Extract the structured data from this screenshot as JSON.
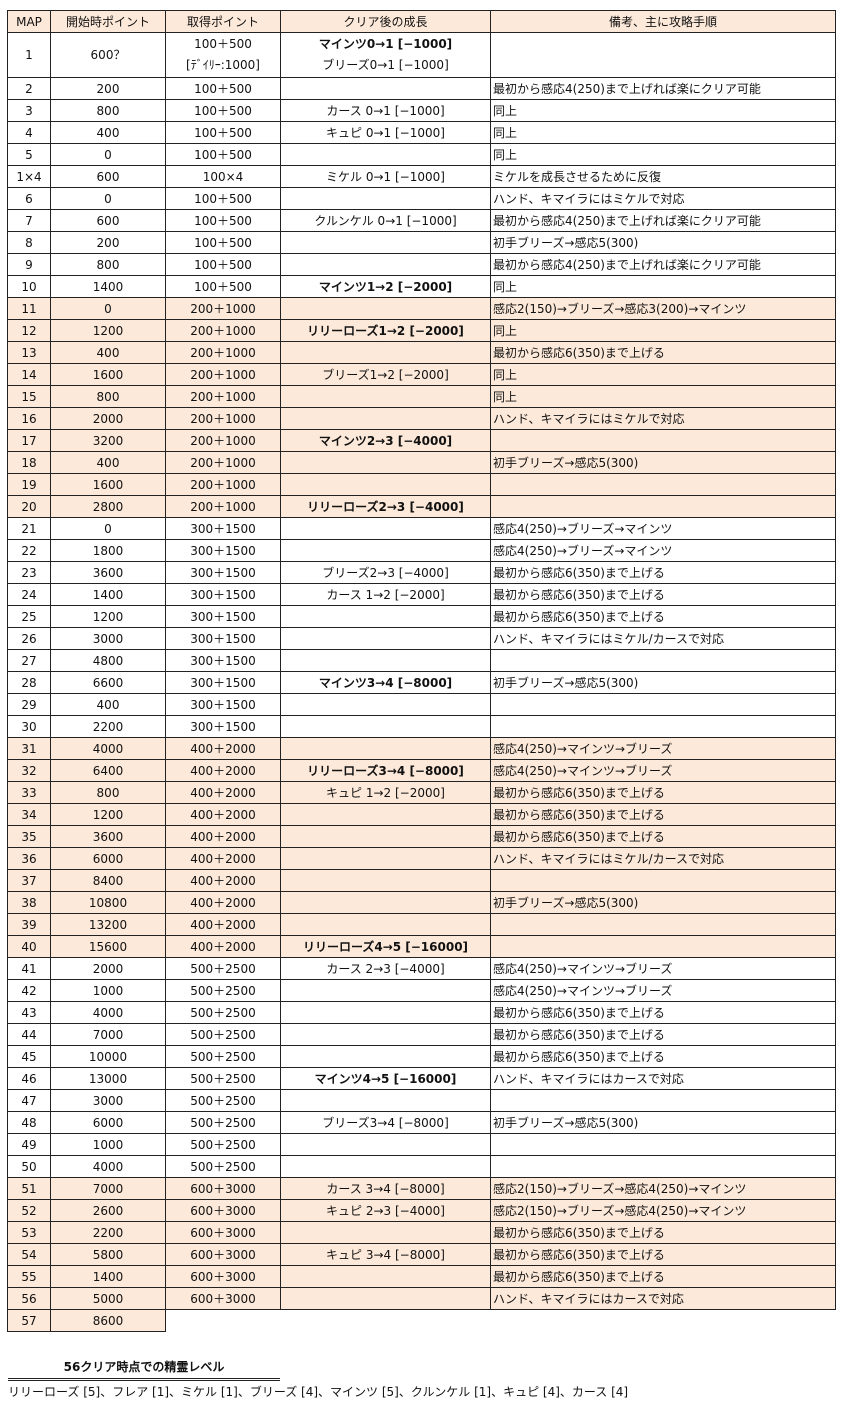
{
  "headers": [
    "MAP",
    "開始時ポイント",
    "取得ポイント",
    "クリア後の成長",
    "備考、主に攻略手順"
  ],
  "row1": {
    "map": "1",
    "start": "600？",
    "gain": [
      "100＋500",
      "[ﾃﾞｲﾘｰ:1000]"
    ],
    "growth": [
      "マインツ0→1 [−1000]",
      "ブリーズ0→1 [−1000]"
    ],
    "note": ""
  },
  "rows": [
    [
      "2",
      "200",
      "100＋500",
      "",
      "最初から感応4(250)まで上げれば楽にクリア可能",
      0,
      0
    ],
    [
      "3",
      "800",
      "100＋500",
      "カース 0→1 [−1000]",
      "同上",
      0,
      0
    ],
    [
      "4",
      "400",
      "100＋500",
      "キュピ 0→1 [−1000]",
      "同上",
      0,
      0
    ],
    [
      "5",
      "0",
      "100＋500",
      "",
      "同上",
      0,
      0
    ],
    [
      "1×4",
      "600",
      "100×4",
      "ミケル 0→1 [−1000]",
      "ミケルを成長させるために反復",
      0,
      0
    ],
    [
      "6",
      "0",
      "100＋500",
      "",
      "ハンド、キマイラにはミケルで対応",
      0,
      0
    ],
    [
      "7",
      "600",
      "100＋500",
      "クルンケル 0→1 [−1000]",
      "最初から感応4(250)まで上げれば楽にクリア可能",
      0,
      0
    ],
    [
      "8",
      "200",
      "100＋500",
      "",
      "初手ブリーズ→感応5(300)",
      0,
      0
    ],
    [
      "9",
      "800",
      "100＋500",
      "",
      "最初から感応4(250)まで上げれば楽にクリア可能",
      0,
      0
    ],
    [
      "10",
      "1400",
      "100＋500",
      "マインツ1→2 [−2000]",
      "同上",
      1,
      0
    ],
    [
      "11",
      "0",
      "200＋1000",
      "",
      "感応2(150)→ブリーズ→感応3(200)→マインツ",
      0,
      1
    ],
    [
      "12",
      "1200",
      "200＋1000",
      "リリーローズ1→2 [−2000]",
      "同上",
      1,
      1
    ],
    [
      "13",
      "400",
      "200＋1000",
      "",
      "最初から感応6(350)まで上げる",
      0,
      1
    ],
    [
      "14",
      "1600",
      "200＋1000",
      "ブリーズ1→2 [−2000]",
      "同上",
      0,
      1
    ],
    [
      "15",
      "800",
      "200＋1000",
      "",
      "同上",
      0,
      1
    ],
    [
      "16",
      "2000",
      "200＋1000",
      "",
      "ハンド、キマイラにはミケルで対応",
      0,
      1
    ],
    [
      "17",
      "3200",
      "200＋1000",
      "マインツ2→3 [−4000]",
      "",
      1,
      1
    ],
    [
      "18",
      "400",
      "200＋1000",
      "",
      "初手ブリーズ→感応5(300)",
      0,
      1
    ],
    [
      "19",
      "1600",
      "200＋1000",
      "",
      "",
      0,
      1
    ],
    [
      "20",
      "2800",
      "200＋1000",
      "リリーローズ2→3 [−4000]",
      "",
      1,
      1
    ],
    [
      "21",
      "0",
      "300＋1500",
      "",
      "感応4(250)→ブリーズ→マインツ",
      0,
      0
    ],
    [
      "22",
      "1800",
      "300＋1500",
      "",
      "感応4(250)→ブリーズ→マインツ",
      0,
      0
    ],
    [
      "23",
      "3600",
      "300＋1500",
      "ブリーズ2→3 [−4000]",
      "最初から感応6(350)まで上げる",
      0,
      0
    ],
    [
      "24",
      "1400",
      "300＋1500",
      "カース 1→2 [−2000]",
      "最初から感応6(350)まで上げる",
      0,
      0
    ],
    [
      "25",
      "1200",
      "300＋1500",
      "",
      "最初から感応6(350)まで上げる",
      0,
      0
    ],
    [
      "26",
      "3000",
      "300＋1500",
      "",
      "ハンド、キマイラにはミケル/カースで対応",
      0,
      0
    ],
    [
      "27",
      "4800",
      "300＋1500",
      "",
      "",
      0,
      0
    ],
    [
      "28",
      "6600",
      "300＋1500",
      "マインツ3→4 [−8000]",
      "初手ブリーズ→感応5(300)",
      1,
      0
    ],
    [
      "29",
      "400",
      "300＋1500",
      "",
      "",
      0,
      0
    ],
    [
      "30",
      "2200",
      "300＋1500",
      "",
      "",
      0,
      0
    ],
    [
      "31",
      "4000",
      "400＋2000",
      "",
      "感応4(250)→マインツ→ブリーズ",
      0,
      1
    ],
    [
      "32",
      "6400",
      "400＋2000",
      "リリーローズ3→4 [−8000]",
      "感応4(250)→マインツ→ブリーズ",
      1,
      1
    ],
    [
      "33",
      "800",
      "400＋2000",
      "キュピ 1→2 [−2000]",
      "最初から感応6(350)まで上げる",
      0,
      1
    ],
    [
      "34",
      "1200",
      "400＋2000",
      "",
      "最初から感応6(350)まで上げる",
      0,
      1
    ],
    [
      "35",
      "3600",
      "400＋2000",
      "",
      "最初から感応6(350)まで上げる",
      0,
      1
    ],
    [
      "36",
      "6000",
      "400＋2000",
      "",
      "ハンド、キマイラにはミケル/カースで対応",
      0,
      1
    ],
    [
      "37",
      "8400",
      "400＋2000",
      "",
      "",
      0,
      1
    ],
    [
      "38",
      "10800",
      "400＋2000",
      "",
      "初手ブリーズ→感応5(300)",
      0,
      1
    ],
    [
      "39",
      "13200",
      "400＋2000",
      "",
      "",
      0,
      1
    ],
    [
      "40",
      "15600",
      "400＋2000",
      "リリーローズ4→5 [−16000]",
      "",
      1,
      1
    ],
    [
      "41",
      "2000",
      "500＋2500",
      "カース 2→3 [−4000]",
      "感応4(250)→マインツ→ブリーズ",
      0,
      0
    ],
    [
      "42",
      "1000",
      "500＋2500",
      "",
      "感応4(250)→マインツ→ブリーズ",
      0,
      0
    ],
    [
      "43",
      "4000",
      "500＋2500",
      "",
      "最初から感応6(350)まで上げる",
      0,
      0
    ],
    [
      "44",
      "7000",
      "500＋2500",
      "",
      "最初から感応6(350)まで上げる",
      0,
      0
    ],
    [
      "45",
      "10000",
      "500＋2500",
      "",
      "最初から感応6(350)まで上げる",
      0,
      0
    ],
    [
      "46",
      "13000",
      "500＋2500",
      "マインツ4→5 [−16000]",
      "ハンド、キマイラにはカースで対応",
      1,
      0
    ],
    [
      "47",
      "3000",
      "500＋2500",
      "",
      "",
      0,
      0
    ],
    [
      "48",
      "6000",
      "500＋2500",
      "ブリーズ3→4 [−8000]",
      "初手ブリーズ→感応5(300)",
      0,
      0
    ],
    [
      "49",
      "1000",
      "500＋2500",
      "",
      "",
      0,
      0
    ],
    [
      "50",
      "4000",
      "500＋2500",
      "",
      "",
      0,
      0
    ],
    [
      "51",
      "7000",
      "600＋3000",
      "カース 3→4 [−8000]",
      "感応2(150)→ブリーズ→感応4(250)→マインツ",
      0,
      1
    ],
    [
      "52",
      "2600",
      "600＋3000",
      "キュピ 2→3 [−4000]",
      "感応2(150)→ブリーズ→感応4(250)→マインツ",
      0,
      1
    ],
    [
      "53",
      "2200",
      "600＋3000",
      "",
      "最初から感応6(350)まで上げる",
      0,
      1
    ],
    [
      "54",
      "5800",
      "600＋3000",
      "キュピ 3→4 [−8000]",
      "最初から感応6(350)まで上げる",
      0,
      1
    ],
    [
      "55",
      "1400",
      "600＋3000",
      "",
      "最初から感応6(350)まで上げる",
      0,
      1
    ],
    [
      "56",
      "5000",
      "600＋3000",
      "",
      "ハンド、キマイラにはカースで対応",
      0,
      1
    ]
  ],
  "last_row": {
    "map": "57",
    "start": "8600"
  },
  "footer": {
    "title": "56クリア時点での精霊レベル",
    "text": "リリーローズ [5]、フレア [1]、ミケル [1]、ブリーズ [4]、マインツ [5]、クルンケル [1]、キュピ [4]、カース [4]"
  }
}
